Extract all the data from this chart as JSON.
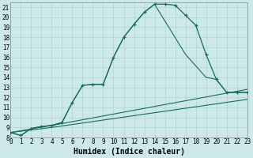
{
  "xlabel": "Humidex (Indice chaleur)",
  "bg_color": "#cce8e8",
  "grid_color": "#aad4d4",
  "line_color": "#1a6b5a",
  "xmin": 0,
  "xmax": 23,
  "ymin": 8,
  "ymax": 21,
  "line1_x": [
    0,
    1,
    2,
    3,
    4,
    5,
    6,
    7,
    8,
    9,
    10,
    11,
    12,
    13,
    14,
    15,
    16,
    17,
    18,
    19,
    20,
    21,
    22,
    23
  ],
  "line1_y": [
    8.5,
    8.2,
    8.9,
    9.1,
    9.2,
    9.5,
    11.5,
    13.2,
    13.3,
    13.3,
    16.0,
    18.0,
    19.3,
    20.5,
    21.3,
    21.3,
    21.2,
    20.2,
    19.2,
    16.3,
    13.8,
    12.5,
    12.5,
    12.5
  ],
  "line1_markers": true,
  "line2_x": [
    0,
    1,
    2,
    3,
    4,
    5,
    6,
    7,
    8,
    9,
    10,
    11,
    12,
    13,
    14,
    17,
    19,
    20,
    21,
    22,
    23
  ],
  "line2_y": [
    8.5,
    8.2,
    8.9,
    9.1,
    9.2,
    9.5,
    11.5,
    13.2,
    13.3,
    13.3,
    16.0,
    18.0,
    19.3,
    20.5,
    21.3,
    16.3,
    14.0,
    13.8,
    12.5,
    12.5,
    12.5
  ],
  "line3_x": [
    0,
    4,
    23
  ],
  "line3_y": [
    8.5,
    9.2,
    12.8
  ],
  "line4_x": [
    0,
    4,
    23
  ],
  "line4_y": [
    8.5,
    9.0,
    11.8
  ],
  "xtick_labels": [
    "0",
    "1",
    "2",
    "3",
    "4",
    "5",
    "6",
    "7",
    "8",
    "9",
    "10",
    "11",
    "12",
    "13",
    "14",
    "15",
    "16",
    "17",
    "18",
    "19",
    "20",
    "21",
    "22",
    "23"
  ],
  "xlabel_fontsize": 7,
  "tick_fontsize": 5.5
}
